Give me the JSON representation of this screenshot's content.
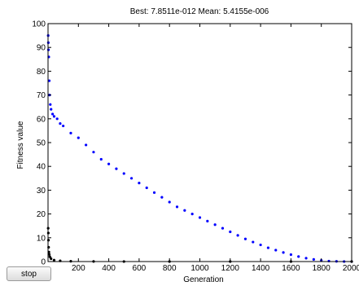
{
  "chart_data": {
    "type": "scatter",
    "title": "Best: 7.8511e-012 Mean: 5.4155e-006",
    "xlabel": "Generation",
    "ylabel": "Fitness value",
    "xlim": [
      0,
      2000
    ],
    "ylim": [
      0,
      100
    ],
    "x_ticks": [
      200,
      400,
      600,
      800,
      1000,
      1200,
      1400,
      1600,
      1800,
      2000
    ],
    "y_ticks": [
      0,
      10,
      20,
      30,
      40,
      50,
      60,
      70,
      80,
      90,
      100
    ],
    "grid": false,
    "series": [
      {
        "color": "#0000ff",
        "marker": "dot",
        "points": [
          [
            1,
            95
          ],
          [
            2,
            92
          ],
          [
            3,
            89
          ],
          [
            5,
            86
          ],
          [
            8,
            76
          ],
          [
            10,
            70
          ],
          [
            15,
            66
          ],
          [
            20,
            64
          ],
          [
            30,
            62
          ],
          [
            40,
            61
          ],
          [
            60,
            60
          ],
          [
            80,
            58
          ],
          [
            100,
            57
          ],
          [
            150,
            54
          ],
          [
            200,
            52
          ],
          [
            250,
            49
          ],
          [
            300,
            46
          ],
          [
            350,
            43
          ],
          [
            400,
            41
          ],
          [
            450,
            39
          ],
          [
            500,
            37
          ],
          [
            550,
            35
          ],
          [
            600,
            33
          ],
          [
            650,
            31
          ],
          [
            700,
            29
          ],
          [
            750,
            27
          ],
          [
            800,
            25
          ],
          [
            850,
            23
          ],
          [
            900,
            21.5
          ],
          [
            950,
            20
          ],
          [
            1000,
            18.5
          ],
          [
            1050,
            17
          ],
          [
            1100,
            15.5
          ],
          [
            1150,
            14
          ],
          [
            1200,
            12.5
          ],
          [
            1250,
            11
          ],
          [
            1300,
            9.5
          ],
          [
            1350,
            8.2
          ],
          [
            1400,
            7
          ],
          [
            1450,
            5.8
          ],
          [
            1500,
            4.8
          ],
          [
            1550,
            3.8
          ],
          [
            1600,
            2.9
          ],
          [
            1650,
            2.1
          ],
          [
            1700,
            1.4
          ],
          [
            1750,
            0.9
          ],
          [
            1800,
            0.5
          ],
          [
            1850,
            0.2
          ],
          [
            1900,
            0.08
          ],
          [
            1950,
            0.02
          ],
          [
            2000,
            0.005
          ]
        ]
      },
      {
        "color": "#000000",
        "marker": "dot",
        "points": [
          [
            1,
            14
          ],
          [
            2,
            12
          ],
          [
            3,
            9
          ],
          [
            4,
            6
          ],
          [
            6,
            4
          ],
          [
            8,
            3
          ],
          [
            12,
            2
          ],
          [
            20,
            1.2
          ],
          [
            40,
            0.6
          ],
          [
            80,
            0.3
          ],
          [
            150,
            0.12
          ],
          [
            300,
            0.05
          ],
          [
            500,
            0.02
          ],
          [
            800,
            0.01
          ],
          [
            1200,
            0.005
          ],
          [
            1600,
            0.002
          ],
          [
            2000,
            0.001
          ]
        ]
      }
    ]
  },
  "stop_button": {
    "label": "stop"
  }
}
